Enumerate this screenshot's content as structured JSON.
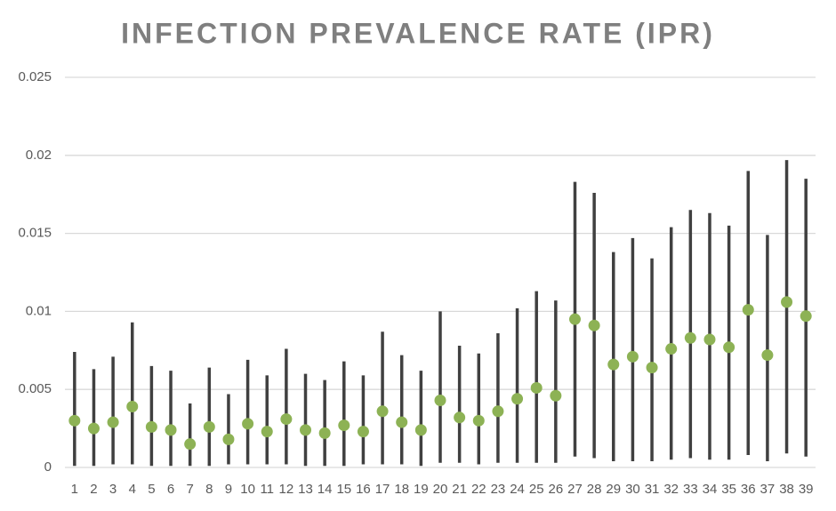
{
  "chart_data": {
    "type": "dotrange",
    "title": "INFECTION PREVALENCE RATE (IPR)",
    "categories": [
      "1",
      "2",
      "3",
      "4",
      "5",
      "6",
      "7",
      "8",
      "9",
      "10",
      "11",
      "12",
      "13",
      "14",
      "15",
      "16",
      "17",
      "18",
      "19",
      "20",
      "21",
      "22",
      "23",
      "24",
      "25",
      "26",
      "27",
      "28",
      "29",
      "30",
      "31",
      "32",
      "33",
      "34",
      "35",
      "36",
      "37",
      "38",
      "39"
    ],
    "values": [
      0.003,
      0.0025,
      0.0029,
      0.0039,
      0.0026,
      0.0024,
      0.0015,
      0.0026,
      0.0018,
      0.0028,
      0.0023,
      0.0031,
      0.0024,
      0.0022,
      0.0027,
      0.0023,
      0.0036,
      0.0029,
      0.0024,
      0.0043,
      0.0032,
      0.003,
      0.0036,
      0.0044,
      0.0051,
      0.0046,
      0.0095,
      0.0091,
      0.0066,
      0.0071,
      0.0064,
      0.0076,
      0.0083,
      0.0082,
      0.0077,
      0.0101,
      0.0072,
      0.0106,
      0.0097
    ],
    "low": [
      0.0001,
      0.0001,
      0.0002,
      0.0002,
      0.0001,
      0.0001,
      0.0001,
      0.0001,
      0.0002,
      0.0002,
      0.0002,
      0.0002,
      0.0001,
      0.0001,
      0.0001,
      0.0002,
      0.0002,
      0.0002,
      0.0001,
      0.0003,
      0.0003,
      0.0002,
      0.0003,
      0.0003,
      0.0003,
      0.0003,
      0.0007,
      0.0006,
      0.0004,
      0.0004,
      0.0004,
      0.0005,
      0.0006,
      0.0005,
      0.0005,
      0.0008,
      0.0004,
      0.0009,
      0.0007
    ],
    "high": [
      0.0074,
      0.0063,
      0.0071,
      0.0093,
      0.0065,
      0.0062,
      0.0041,
      0.0064,
      0.0047,
      0.0069,
      0.0059,
      0.0076,
      0.006,
      0.0056,
      0.0068,
      0.0059,
      0.0087,
      0.0072,
      0.0062,
      0.01,
      0.0078,
      0.0073,
      0.0086,
      0.0102,
      0.0113,
      0.0107,
      0.0183,
      0.0176,
      0.0138,
      0.0147,
      0.0134,
      0.0154,
      0.0165,
      0.0163,
      0.0155,
      0.019,
      0.0149,
      0.0197,
      0.0185
    ],
    "point_color": "#8db255",
    "range_color": "#404040",
    "ylim": [
      0,
      0.025
    ],
    "yticks": [
      0,
      0.005,
      0.01,
      0.015,
      0.02,
      0.025
    ],
    "grid": true
  }
}
